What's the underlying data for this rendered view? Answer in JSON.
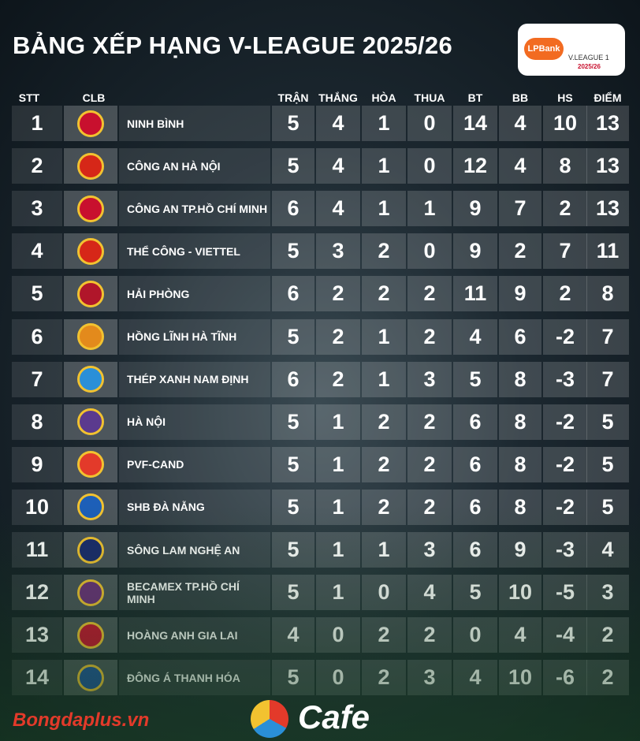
{
  "header": {
    "title": "BẢNG XẾP HẠNG V-LEAGUE 2025/26",
    "logo": {
      "bank": "LPBank",
      "league": "V.LEAGUE 1",
      "season": "2025/26"
    }
  },
  "table": {
    "columns": [
      "STT",
      "CLB",
      "TRẬN",
      "THẮNG",
      "HÒA",
      "THUA",
      "BT",
      "BB",
      "HS",
      "ĐIỂM"
    ],
    "rows": [
      [
        1,
        "NINH BÌNH",
        5,
        4,
        1,
        0,
        14,
        4,
        10,
        13
      ],
      [
        2,
        "CÔNG AN HÀ NỘI",
        5,
        4,
        1,
        0,
        12,
        4,
        8,
        13
      ],
      [
        3,
        "CÔNG AN TP.HỒ CHÍ MINH",
        6,
        4,
        1,
        1,
        9,
        7,
        2,
        13
      ],
      [
        4,
        "THỂ CÔNG - VIETTEL",
        5,
        3,
        2,
        0,
        9,
        2,
        7,
        11
      ],
      [
        5,
        "HẢI PHÒNG",
        6,
        2,
        2,
        2,
        11,
        9,
        2,
        8
      ],
      [
        6,
        "HỒNG LĨNH HÀ TĨNH",
        5,
        2,
        1,
        2,
        4,
        6,
        -2,
        7
      ],
      [
        7,
        "THÉP XANH NAM ĐỊNH",
        6,
        2,
        1,
        3,
        5,
        8,
        -3,
        7
      ],
      [
        8,
        "HÀ NỘI",
        5,
        1,
        2,
        2,
        6,
        8,
        -2,
        5
      ],
      [
        9,
        "PVF-CAND",
        5,
        1,
        2,
        2,
        6,
        8,
        -2,
        5
      ],
      [
        10,
        "SHB ĐÀ NẴNG",
        5,
        1,
        2,
        2,
        6,
        8,
        -2,
        5
      ],
      [
        11,
        "SÔNG LAM NGHỆ AN",
        5,
        1,
        1,
        3,
        6,
        9,
        -3,
        4
      ],
      [
        12,
        "BECAMEX TP.HỒ CHÍ MINH",
        5,
        1,
        0,
        4,
        5,
        10,
        -5,
        3
      ],
      [
        13,
        "HOÀNG ANH GIA LAI",
        4,
        0,
        2,
        2,
        0,
        4,
        -4,
        2
      ],
      [
        14,
        "ĐÔNG Á THANH HÓA",
        5,
        0,
        2,
        3,
        4,
        10,
        -6,
        2
      ]
    ]
  },
  "footer": {
    "source": "Bongdaplus.vn",
    "brand": "Cafe"
  }
}
